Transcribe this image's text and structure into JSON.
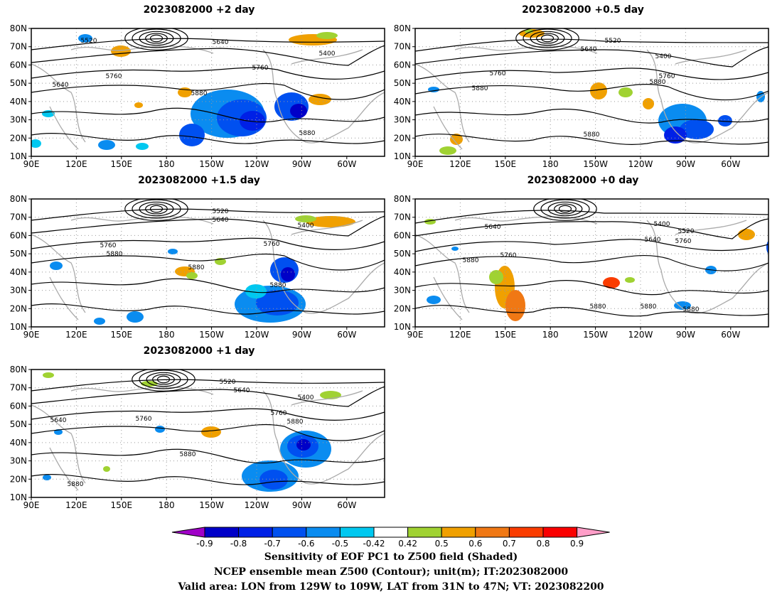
{
  "panels": [
    {
      "id": "p2",
      "title": "2023082000 +2 day",
      "pos": "top-left"
    },
    {
      "id": "p05",
      "title": "2023082000 +0.5 day",
      "pos": "top-right"
    },
    {
      "id": "p15",
      "title": "2023082000 +1.5 day",
      "pos": "middle-left"
    },
    {
      "id": "p0",
      "title": "2023082000 +0 day",
      "pos": "middle-right"
    },
    {
      "id": "p1",
      "title": "2023082000 +1 day",
      "pos": "bottom-left"
    }
  ],
  "axes": {
    "lat_labels": [
      "80N",
      "70N",
      "60N",
      "50N",
      "40N",
      "30N",
      "20N",
      "10N"
    ],
    "lon_labels": [
      "90E",
      "120E",
      "150E",
      "180",
      "150W",
      "120W",
      "90W",
      "60W"
    ]
  },
  "contours": {
    "p2": [
      "5520",
      "5640",
      "5400",
      "5760",
      "5760",
      "5640",
      "5880",
      "5880"
    ],
    "p05": [
      "5520",
      "5640",
      "5400",
      "5760",
      "5760",
      "5880",
      "5880",
      "5880"
    ],
    "p15": [
      "5520",
      "5640",
      "5400",
      "5760",
      "5760",
      "5880",
      "5880",
      "5880"
    ],
    "p0": [
      "5640",
      "5400",
      "5520",
      "5640",
      "5760",
      "5760",
      "5880",
      "5880",
      "5880",
      "5880"
    ],
    "p1": [
      "5520",
      "5640",
      "5400",
      "5760",
      "5760",
      "5640",
      "5880",
      "5880",
      "5880"
    ]
  },
  "colorbar": {
    "labels": [
      "-0.9",
      "-0.8",
      "-0.7",
      "-0.6",
      "-0.5",
      "-0.42",
      "0.42",
      "0.5",
      "0.6",
      "0.7",
      "0.8",
      "0.9"
    ],
    "colors": [
      "#a000c8",
      "#0000c8",
      "#0020e6",
      "#0050f0",
      "#0a8cf0",
      "#00c8f0",
      "#ffffff",
      "#a0d232",
      "#f0a000",
      "#f07814",
      "#fa3c00",
      "#fa0000",
      "#ff9ec8"
    ]
  },
  "caption": {
    "line1": "Sensitivity of EOF PC1 to Z500 field (Shaded)",
    "line2": "NCEP ensemble mean Z500 (Contour); unit(m); IT:2023082000",
    "line3": "Valid area: LON from 129W to 109W, LAT from 31N to 47N; VT: 2023082200"
  }
}
